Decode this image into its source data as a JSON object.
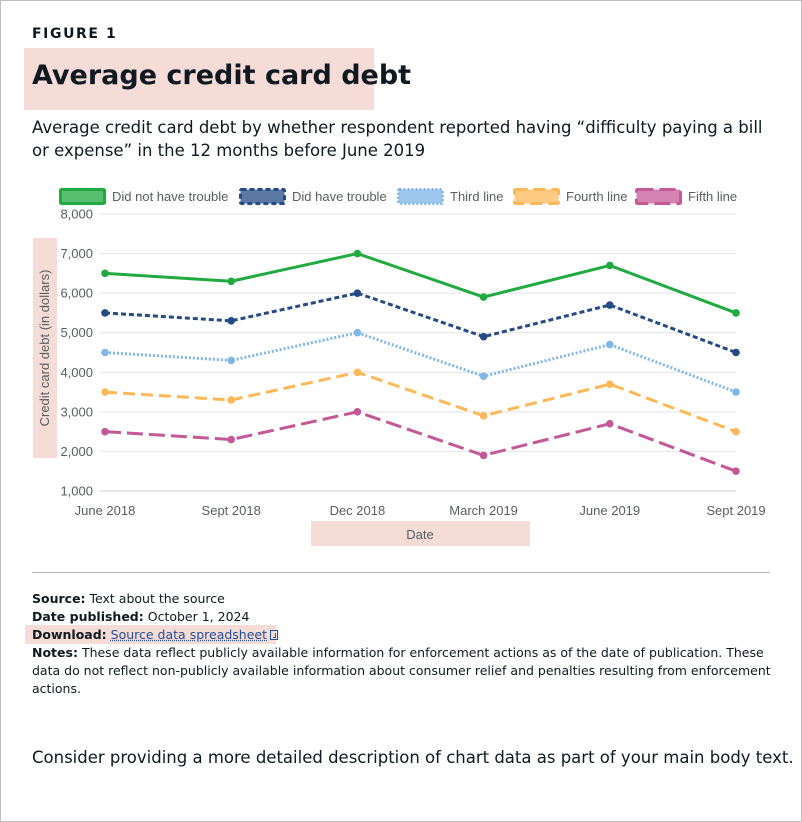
{
  "figure": {
    "label": "FIGURE 1",
    "title": "Average credit card debt",
    "subtitle": "Average credit card debt by whether respondent reported having “difficulty paying a bill or expense” in the 12 months before June 2019"
  },
  "chart_data": {
    "type": "line",
    "categories": [
      "June 2018",
      "Sept 2018",
      "Dec 2018",
      "March 2019",
      "June 2019",
      "Sept 2019"
    ],
    "xlabel": "Date",
    "ylabel": "Credit card debt (in dollars)",
    "ylim": [
      1000,
      8000
    ],
    "yticks": [
      "1,000",
      "2,000",
      "3,000",
      "4,000",
      "5,000",
      "6,000",
      "7,000",
      "8,000"
    ],
    "grid": true,
    "legend_position": "top",
    "series": [
      {
        "name": "Did not have trouble",
        "color": "#20aa3f",
        "dash": "solid",
        "values": [
          6500,
          6300,
          7000,
          5900,
          6700,
          5500
        ]
      },
      {
        "name": "Did have trouble",
        "color": "#254b87",
        "dash": "dashed",
        "values": [
          5500,
          5300,
          6000,
          4900,
          5700,
          4500
        ]
      },
      {
        "name": "Third line",
        "color": "#7eb7e8",
        "dash": "dotted",
        "values": [
          4500,
          4300,
          5000,
          3900,
          4700,
          3500
        ]
      },
      {
        "name": "Fourth line",
        "color": "#ffb858",
        "dash": "long-dash",
        "values": [
          3500,
          3300,
          4000,
          2900,
          3700,
          2500
        ]
      },
      {
        "name": "Fifth line",
        "color": "#c55998",
        "dash": "dash-dot",
        "values": [
          2500,
          2300,
          3000,
          1900,
          2700,
          1500
        ]
      }
    ]
  },
  "meta": {
    "source_label": "Source:",
    "source_text": "Text about the source",
    "date_label": "Date published:",
    "date_text": "October 1, 2024",
    "download_label": "Download:",
    "download_link": "Source data spreadsheet",
    "notes_label": "Notes:",
    "notes_text": "These data reflect publicly available information for enforcement actions as of the date of publication. These data do not reflect non-publicly available information about consumer relief and penalties resulting from enforcement actions."
  },
  "footer_text": "Consider providing a more detailed description of chart data as part of your main body text."
}
